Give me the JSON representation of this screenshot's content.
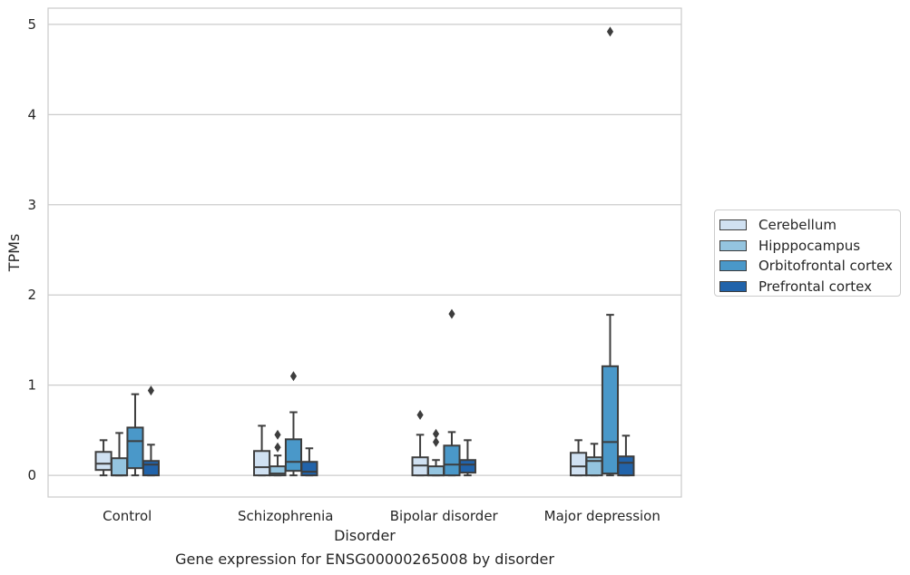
{
  "chart_data": {
    "type": "box",
    "title": "Gene expression for ENSG00000265008 by disorder",
    "xlabel": "Disorder",
    "ylabel": "TPMs",
    "ylim": [
      -0.24,
      5.18
    ],
    "yticks": [
      0,
      1,
      2,
      3,
      4,
      5
    ],
    "grid": true,
    "legend_position": "right",
    "categories": [
      "Control",
      "Schizophrenia",
      "Bipolar disorder",
      "Major depression"
    ],
    "series": [
      {
        "name": "Cerebellum",
        "color": "#d0e1f2",
        "boxes": [
          {
            "whislo": 0.0,
            "q1": 0.06,
            "med": 0.13,
            "q3": 0.26,
            "whishi": 0.39,
            "fliers": []
          },
          {
            "whislo": 0.0,
            "q1": 0.0,
            "med": 0.09,
            "q3": 0.27,
            "whishi": 0.55,
            "fliers": []
          },
          {
            "whislo": 0.0,
            "q1": 0.0,
            "med": 0.11,
            "q3": 0.2,
            "whishi": 0.45,
            "fliers": [
              0.67
            ]
          },
          {
            "whislo": 0.0,
            "q1": 0.0,
            "med": 0.1,
            "q3": 0.25,
            "whishi": 0.39,
            "fliers": []
          }
        ]
      },
      {
        "name": "Hipppocampus",
        "color": "#94c4df",
        "boxes": [
          {
            "whislo": 0.0,
            "q1": 0.0,
            "med": 0.0,
            "q3": 0.19,
            "whishi": 0.47,
            "fliers": []
          },
          {
            "whislo": 0.0,
            "q1": 0.0,
            "med": 0.02,
            "q3": 0.1,
            "whishi": 0.22,
            "fliers": [
              0.31,
              0.45
            ]
          },
          {
            "whislo": 0.0,
            "q1": 0.0,
            "med": 0.0,
            "q3": 0.1,
            "whishi": 0.17,
            "fliers": [
              0.37,
              0.46
            ]
          },
          {
            "whislo": 0.0,
            "q1": 0.0,
            "med": 0.16,
            "q3": 0.2,
            "whishi": 0.35,
            "fliers": []
          }
        ]
      },
      {
        "name": "Orbitofrontal cortex",
        "color": "#4a98c9",
        "boxes": [
          {
            "whislo": 0.0,
            "q1": 0.08,
            "med": 0.38,
            "q3": 0.53,
            "whishi": 0.9,
            "fliers": []
          },
          {
            "whislo": 0.0,
            "q1": 0.05,
            "med": 0.15,
            "q3": 0.4,
            "whishi": 0.7,
            "fliers": [
              1.1
            ]
          },
          {
            "whislo": 0.0,
            "q1": 0.0,
            "med": 0.12,
            "q3": 0.33,
            "whishi": 0.48,
            "fliers": [
              1.79
            ]
          },
          {
            "whislo": 0.0,
            "q1": 0.02,
            "med": 0.37,
            "q3": 1.21,
            "whishi": 1.78,
            "fliers": [
              4.92
            ]
          }
        ]
      },
      {
        "name": "Prefrontal cortex",
        "color": "#2163aa",
        "boxes": [
          {
            "whislo": 0.0,
            "q1": 0.0,
            "med": 0.12,
            "q3": 0.16,
            "whishi": 0.34,
            "fliers": [
              0.94
            ]
          },
          {
            "whislo": 0.0,
            "q1": 0.0,
            "med": 0.04,
            "q3": 0.15,
            "whishi": 0.3,
            "fliers": []
          },
          {
            "whislo": 0.0,
            "q1": 0.03,
            "med": 0.12,
            "q3": 0.17,
            "whishi": 0.39,
            "fliers": []
          },
          {
            "whislo": 0.0,
            "q1": 0.0,
            "med": 0.14,
            "q3": 0.21,
            "whishi": 0.44,
            "fliers": []
          }
        ]
      }
    ]
  }
}
